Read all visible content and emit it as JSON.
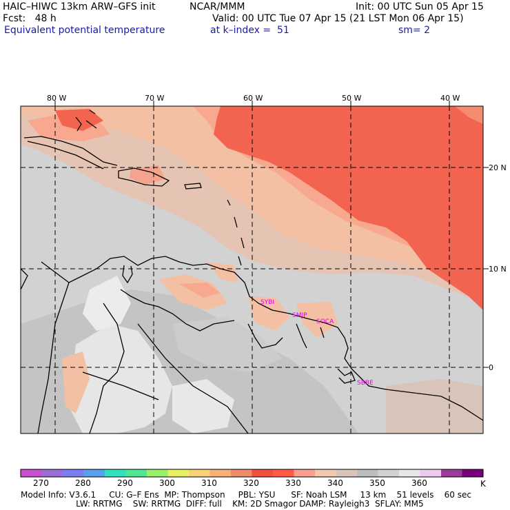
{
  "header": {
    "model_title": "HAIC–HIWC 13km ARW–GFS init",
    "center": "NCAR/MMM",
    "init": "Init: 00 UTC Sun 05 Apr 15",
    "fcst": "Fcst:   48 h",
    "valid": "Valid: 00 UTC Tue 07 Apr 15 (21 LST Mon 06 Apr 15)",
    "field": "Equivalent potential temperature",
    "level": "at k–index =  51",
    "smooth": "sm= 2"
  },
  "map": {
    "lon_labels": [
      "80 W",
      "70 W",
      "60 W",
      "50 W",
      "40 W"
    ],
    "lat_labels": [
      "20 N",
      "10 N",
      "0"
    ],
    "stations": [
      "SYBI",
      "SMJP",
      "SOCA",
      "SBBE"
    ],
    "station_color": "#e000e0"
  },
  "colorbar": {
    "unit": "K",
    "tick_labels": [
      "270",
      "280",
      "290",
      "300",
      "310",
      "320",
      "330",
      "340",
      "350",
      "360"
    ],
    "colors": [
      "#c850d2",
      "#9a6ed6",
      "#7b7ef0",
      "#5aa0ec",
      "#32e0c0",
      "#52e692",
      "#9af06a",
      "#e8f064",
      "#fad27a",
      "#f8b078",
      "#f08c6e",
      "#f05040",
      "#ff5a48",
      "#f9a090",
      "#f4c8b0",
      "#d8c4b8",
      "#bebebe",
      "#d2d2d2",
      "#e8e8e8",
      "#eecaf0",
      "#9a3c9a",
      "#780078"
    ]
  },
  "model_info": {
    "line1": "Model Info: V3.6.1     CU: G–F Ens  MP: Thompson     PBL: YSU      SF: Noah LSM     13 km    51 levels    60 sec",
    "line2": "                     LW: RRTMG    SW: RRTMG  DIFF: full    KM: 2D Smagor DAMP: Rayleigh3  SFLAY: MM5"
  }
}
